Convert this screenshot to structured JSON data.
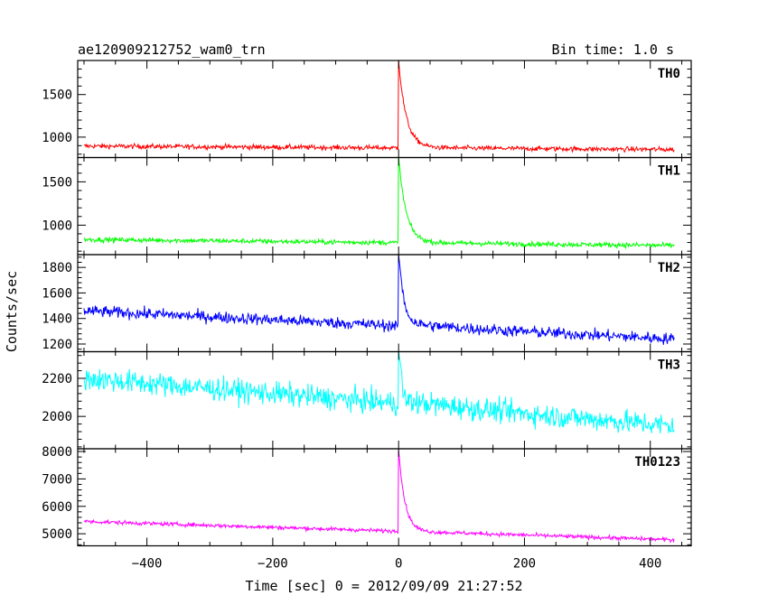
{
  "chart_data": {
    "type": "line",
    "title": "ae120909212752_wam0_trn",
    "subtitle": "Bin time: 1.0 s",
    "xlabel": "Time [sec] 0 = 2012/09/09 21:27:52",
    "ylabel": "Counts/sec",
    "xlim": [
      -510,
      465
    ],
    "xticks": [
      -400,
      -200,
      0,
      200,
      400
    ],
    "x_range": [
      -500,
      438
    ],
    "panels": [
      {
        "name": "TH0",
        "color": "#ff0000",
        "ylim": [
          760,
          1900
        ],
        "yticks": [
          1000,
          1500
        ],
        "baseline_start": 895,
        "baseline_end": 855,
        "noise": 28,
        "peak": 1900,
        "decay_tau": 12,
        "decay_floor": 880
      },
      {
        "name": "TH1",
        "color": "#00ff00",
        "ylim": [
          660,
          1780
        ],
        "yticks": [
          1000,
          1500
        ],
        "baseline_start": 835,
        "baseline_end": 765,
        "noise": 28,
        "peak": 1780,
        "decay_tau": 12,
        "decay_floor": 800
      },
      {
        "name": "TH2",
        "color": "#0000ff",
        "ylim": [
          1140,
          1900
        ],
        "yticks": [
          1200,
          1400,
          1600,
          1800
        ],
        "baseline_start": 1460,
        "baseline_end": 1240,
        "noise": 45,
        "peak": 1900,
        "decay_tau": 8,
        "decay_floor": 1360
      },
      {
        "name": "TH3",
        "color": "#00ffff",
        "ylim": [
          1830,
          2340
        ],
        "yticks": [
          2000,
          2200
        ],
        "baseline_start": 2200,
        "baseline_end": 1950,
        "noise": 60,
        "peak": 2340,
        "decay_tau": 4,
        "decay_floor": 2080
      },
      {
        "name": "TH0123",
        "color": "#ff00ff",
        "ylim": [
          4560,
          8100
        ],
        "yticks": [
          5000,
          6000,
          7000,
          8000
        ],
        "baseline_start": 5450,
        "baseline_end": 4780,
        "noise": 70,
        "peak": 8050,
        "decay_tau": 10,
        "decay_floor": 5050
      }
    ]
  }
}
